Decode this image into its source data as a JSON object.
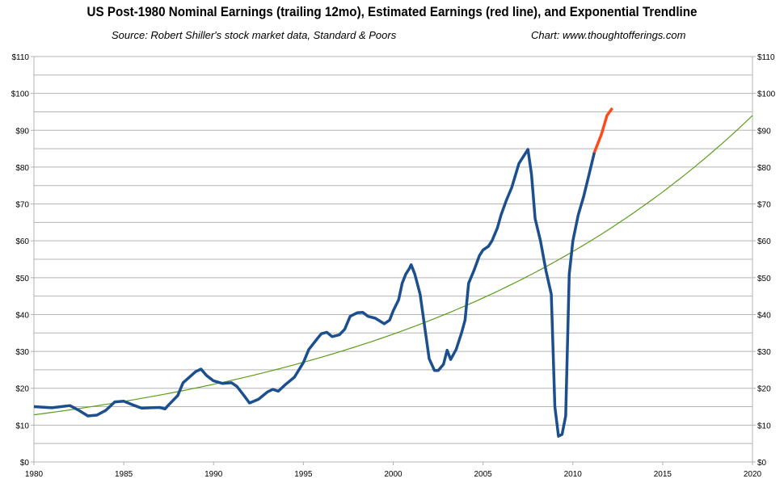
{
  "chart_data": {
    "type": "line",
    "title": "US Post-1980 Nominal Earnings (trailing 12mo), Estimated Earnings (red line), and Exponential Trendline",
    "subtitle_left": "Source: Robert Shiller's stock market data, Standard & Poors",
    "subtitle_right": "Chart: www.thoughtofferings.com",
    "xlim": [
      1980,
      2020
    ],
    "ylim": [
      0,
      110
    ],
    "x_ticks": [
      1980,
      1985,
      1990,
      1995,
      2000,
      2005,
      2010,
      2015,
      2020
    ],
    "y_ticks": [
      "$0",
      "$10",
      "$20",
      "$30",
      "$40",
      "$50",
      "$60",
      "$70",
      "$80",
      "$90",
      "$100",
      "$110"
    ],
    "grid": true,
    "colors": {
      "earnings": "#1b4f8e",
      "estimated": "#ff4a1c",
      "trend": "#5b9e1a"
    },
    "series": [
      {
        "key": "earnings",
        "points": [
          [
            1980,
            15
          ],
          [
            1981,
            14.7
          ],
          [
            1982,
            15.3
          ],
          [
            1982.5,
            14
          ],
          [
            1983,
            12.5
          ],
          [
            1983.5,
            12.7
          ],
          [
            1984,
            14
          ],
          [
            1984.5,
            16.3
          ],
          [
            1985,
            16.5
          ],
          [
            1985.5,
            15.5
          ],
          [
            1986,
            14.6
          ],
          [
            1986.5,
            14.7
          ],
          [
            1987,
            14.8
          ],
          [
            1987.3,
            14.4
          ],
          [
            1987.5,
            15.5
          ],
          [
            1988,
            18
          ],
          [
            1988.3,
            21.5
          ],
          [
            1989,
            24.5
          ],
          [
            1989.3,
            25.2
          ],
          [
            1989.6,
            23.5
          ],
          [
            1990,
            22
          ],
          [
            1990.5,
            21.3
          ],
          [
            1991,
            21.5
          ],
          [
            1991.3,
            20.5
          ],
          [
            1991.7,
            18
          ],
          [
            1992,
            16
          ],
          [
            1992.5,
            17
          ],
          [
            1993,
            19
          ],
          [
            1993.3,
            19.7
          ],
          [
            1993.6,
            19.2
          ],
          [
            1994,
            21
          ],
          [
            1994.5,
            23
          ],
          [
            1995,
            27
          ],
          [
            1995.3,
            30.5
          ],
          [
            1995.7,
            33
          ],
          [
            1996,
            34.8
          ],
          [
            1996.3,
            35.2
          ],
          [
            1996.6,
            34
          ],
          [
            1997,
            34.5
          ],
          [
            1997.3,
            36
          ],
          [
            1997.6,
            39.5
          ],
          [
            1998,
            40.5
          ],
          [
            1998.3,
            40.6
          ],
          [
            1998.6,
            39.5
          ],
          [
            1999,
            39
          ],
          [
            1999.5,
            37.5
          ],
          [
            1999.8,
            38.5
          ],
          [
            2000,
            41
          ],
          [
            2000.3,
            44
          ],
          [
            2000.5,
            48.5
          ],
          [
            2000.7,
            51
          ],
          [
            2000.9,
            52.5
          ],
          [
            2001,
            53.5
          ],
          [
            2001.2,
            51
          ],
          [
            2001.5,
            45.5
          ],
          [
            2001.8,
            35
          ],
          [
            2002,
            28
          ],
          [
            2002.3,
            24.8
          ],
          [
            2002.5,
            24.8
          ],
          [
            2002.8,
            26.5
          ],
          [
            2003,
            30.3
          ],
          [
            2003.2,
            27.8
          ],
          [
            2003.5,
            30.5
          ],
          [
            2003.8,
            35
          ],
          [
            2004,
            38.5
          ],
          [
            2004.2,
            48.5
          ],
          [
            2004.5,
            52
          ],
          [
            2004.8,
            56
          ],
          [
            2005,
            57.5
          ],
          [
            2005.3,
            58.5
          ],
          [
            2005.5,
            60
          ],
          [
            2005.8,
            63.5
          ],
          [
            2006,
            67
          ],
          [
            2006.3,
            71
          ],
          [
            2006.6,
            74.5
          ],
          [
            2007,
            81
          ],
          [
            2007.5,
            84.8
          ],
          [
            2007.7,
            78
          ],
          [
            2007.9,
            66
          ],
          [
            2008.2,
            60
          ],
          [
            2008.5,
            52
          ],
          [
            2008.8,
            45.5
          ],
          [
            2009,
            15
          ],
          [
            2009.2,
            7
          ],
          [
            2009.4,
            7.5
          ],
          [
            2009.6,
            12.5
          ],
          [
            2009.8,
            51
          ],
          [
            2010,
            60
          ],
          [
            2010.3,
            67
          ],
          [
            2010.6,
            72
          ],
          [
            2010.9,
            78
          ],
          [
            2011.2,
            84
          ]
        ]
      },
      {
        "key": "estimated",
        "points": [
          [
            2011.2,
            84
          ],
          [
            2011.6,
            89
          ],
          [
            2011.9,
            94
          ],
          [
            2012.2,
            96
          ]
        ]
      },
      {
        "key": "trend",
        "type": "exponential",
        "points": [
          [
            1980,
            12.8
          ],
          [
            1990,
            21.5
          ],
          [
            2000,
            35
          ],
          [
            2010,
            57
          ],
          [
            2020,
            94
          ]
        ]
      }
    ]
  }
}
